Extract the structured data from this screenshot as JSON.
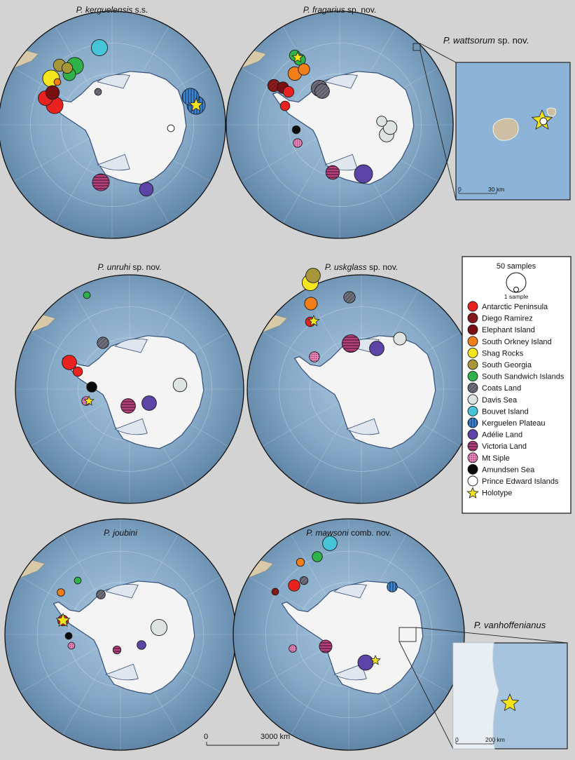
{
  "colors": {
    "Antarctic Peninsula": "#e8231f",
    "Diego Ramirez": "#8e1b1b",
    "Elephant Island": "#7a0f12",
    "South Orkney Island": "#f07e19",
    "Shag Rocks": "#f4e51e",
    "South Georgia": "#a8973a",
    "South Sandwich Islands": "#2fb24a",
    "Coats Land": "#6f6f7d",
    "Davis Sea": "#dde3df",
    "Bouvet Island": "#48c4d8",
    "Kerguelen Plateau": "#3f86cf",
    "Adélie Land": "#5b44a6",
    "Victoria Land": "#b6427a",
    "Mt Siple": "#e286b8",
    "Amundsen Sea": "#0a0a0a",
    "Prince Edward Islands": "#ffffff",
    "Holotype": "#f4e21c"
  },
  "legend": {
    "size_max_label": "50 samples",
    "size_min_label": "1 sample",
    "items": [
      "Antarctic Peninsula",
      "Diego Ramirez",
      "Elephant Island",
      "South Orkney Island",
      "Shag Rocks",
      "South Georgia",
      "South Sandwich Islands",
      "Coats Land",
      "Davis Sea",
      "Bouvet Island",
      "Kerguelen Plateau",
      "Adélie Land",
      "Victoria Land",
      "Mt Siple",
      "Amundsen Sea",
      "Prince Edward Islands",
      "Holotype"
    ]
  },
  "scale_bar": {
    "start": "0",
    "end": "3000 km"
  },
  "panels": [
    {
      "id": "kerguelensis",
      "title_italic": "P. kerguelensis",
      "title_rest": " s.s.",
      "holotype": {
        "location": "Kerguelen Plateau"
      },
      "points": [
        {
          "location": "Bouvet Island",
          "samples": 40
        },
        {
          "location": "South Sandwich Islands",
          "samples": 45
        },
        {
          "location": "South Sandwich Islands",
          "samples": 20
        },
        {
          "location": "South Georgia",
          "samples": 18
        },
        {
          "location": "South Georgia",
          "samples": 12
        },
        {
          "location": "Shag Rocks",
          "samples": 45
        },
        {
          "location": "Elephant Island",
          "samples": 25
        },
        {
          "location": "South Orkney Island",
          "samples": 2
        },
        {
          "location": "Antarctic Peninsula",
          "samples": 30
        },
        {
          "location": "Antarctic Peninsula",
          "samples": 45
        },
        {
          "location": "Coats Land",
          "samples": 2
        },
        {
          "location": "Kerguelen Plateau",
          "samples": 45
        },
        {
          "location": "Kerguelen Plateau",
          "samples": 55
        },
        {
          "location": "Prince Edward Islands",
          "samples": 2
        },
        {
          "location": "Victoria Land",
          "samples": 45
        },
        {
          "location": "Adélie Land",
          "samples": 25
        }
      ]
    },
    {
      "id": "fragarius",
      "title_italic": "P. fragarius",
      "title_rest": " sp. nov.",
      "holotype": {
        "location": "South Sandwich Islands"
      },
      "points": [
        {
          "location": "South Sandwich Islands",
          "samples": 12
        },
        {
          "location": "South Sandwich Islands",
          "samples": 15
        },
        {
          "location": "South Orkney Island",
          "samples": 25
        },
        {
          "location": "South Orkney Island",
          "samples": 15
        },
        {
          "location": "Coats Land",
          "samples": 40
        },
        {
          "location": "Coats Land",
          "samples": 30
        },
        {
          "location": "Diego Ramirez",
          "samples": 18
        },
        {
          "location": "Elephant Island",
          "samples": 15
        },
        {
          "location": "Antarctic Peninsula",
          "samples": 12
        },
        {
          "location": "Antarctic Peninsula",
          "samples": 8
        },
        {
          "location": "Amundsen Sea",
          "samples": 4
        },
        {
          "location": "Mt Siple",
          "samples": 6
        },
        {
          "location": "Davis Sea",
          "samples": 10
        },
        {
          "location": "Davis Sea",
          "samples": 25
        },
        {
          "location": "Davis Sea",
          "samples": 30
        },
        {
          "location": "Victoria Land",
          "samples": 25
        },
        {
          "location": "Adélie Land",
          "samples": 55
        }
      ]
    },
    {
      "id": "unruhi",
      "title_italic": "P. unruhi",
      "title_rest": " sp. nov.",
      "holotype": {
        "location": "Mt Siple"
      },
      "points": [
        {
          "location": "South Sandwich Islands",
          "samples": 2
        },
        {
          "location": "Coats Land",
          "samples": 15
        },
        {
          "location": "Antarctic Peninsula",
          "samples": 30
        },
        {
          "location": "Antarctic Peninsula",
          "samples": 8
        },
        {
          "location": "Davis Sea",
          "samples": 25
        },
        {
          "location": "Amundsen Sea",
          "samples": 10
        },
        {
          "location": "Mt Siple",
          "samples": 6
        },
        {
          "location": "Victoria Land",
          "samples": 30
        },
        {
          "location": "Adélie Land",
          "samples": 30
        }
      ]
    },
    {
      "id": "uskglass",
      "title_italic": "P. uskglass",
      "title_rest": " sp. nov.",
      "holotype": {
        "location": "South Orkney Island"
      },
      "points": [
        {
          "location": "South Georgia",
          "samples": 30
        },
        {
          "location": "Shag Rocks",
          "samples": 40
        },
        {
          "location": "South Orkney Island",
          "samples": 20
        },
        {
          "location": "Antarctic Peninsula",
          "samples": 8
        },
        {
          "location": "Coats Land",
          "samples": 15
        },
        {
          "location": "Davis Sea",
          "samples": 20
        },
        {
          "location": "Mt Siple",
          "samples": 10
        },
        {
          "location": "Victoria Land",
          "samples": 50
        },
        {
          "location": "Adélie Land",
          "samples": 30
        }
      ]
    },
    {
      "id": "joubini",
      "title_italic": "P. joubini",
      "title_rest": "",
      "holotype": {
        "location": "Antarctic Peninsula"
      },
      "points": [
        {
          "location": "South Sandwich Islands",
          "samples": 2
        },
        {
          "location": "South Orkney Island",
          "samples": 3
        },
        {
          "location": "Antarctic Peninsula",
          "samples": 12
        },
        {
          "location": "Coats Land",
          "samples": 6
        },
        {
          "location": "Davis Sea",
          "samples": 40
        },
        {
          "location": "Amundsen Sea",
          "samples": 2
        },
        {
          "location": "Mt Siple",
          "samples": 2
        },
        {
          "location": "Victoria Land",
          "samples": 4
        },
        {
          "location": "Adélie Land",
          "samples": 6
        }
      ]
    },
    {
      "id": "mawsoni",
      "title_italic": "P. mawsoni",
      "title_rest": " comb. nov.",
      "holotype": {
        "location": "Adélie Land"
      },
      "points": [
        {
          "location": "Bouvet Island",
          "samples": 30
        },
        {
          "location": "South Sandwich Islands",
          "samples": 10
        },
        {
          "location": "South Orkney Island",
          "samples": 4
        },
        {
          "location": "Coats Land",
          "samples": 4
        },
        {
          "location": "Diego Ramirez",
          "samples": 2
        },
        {
          "location": "Antarctic Peninsula",
          "samples": 15
        },
        {
          "location": "Kerguelen Plateau",
          "samples": 10
        },
        {
          "location": "Mt Siple",
          "samples": 3
        },
        {
          "location": "Victoria Land",
          "samples": 20
        },
        {
          "location": "Adélie Land",
          "samples": 35
        }
      ]
    }
  ],
  "insets": [
    {
      "id": "wattsorum",
      "title_italic": "P. wattsorum",
      "title_rest": " sp. nov.",
      "scale_start": "0",
      "scale_end": "30 km",
      "holotype": {
        "location": "Prince Edward Islands"
      }
    },
    {
      "id": "vanhoffenianus",
      "title_italic": "P. vanhoffenianus",
      "title_rest": "",
      "scale_start": "0",
      "scale_end": "200 km",
      "holotype": {
        "location": "Holotype"
      }
    }
  ]
}
